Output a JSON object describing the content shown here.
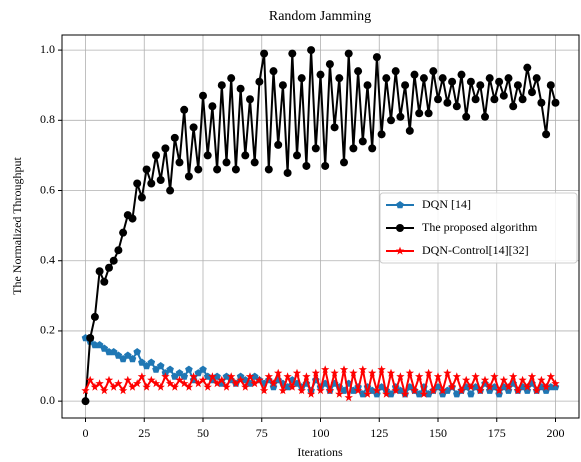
{
  "chart_data": {
    "type": "line",
    "title": "Random Jamming",
    "x_label": "Iterations",
    "y_label": "The Normalized Throughput",
    "x": [
      0,
      2,
      4,
      6,
      8,
      10,
      12,
      14,
      16,
      18,
      20,
      22,
      24,
      26,
      28,
      30,
      32,
      34,
      36,
      38,
      40,
      42,
      44,
      46,
      48,
      50,
      52,
      54,
      56,
      58,
      60,
      62,
      64,
      66,
      68,
      70,
      72,
      74,
      76,
      78,
      80,
      82,
      84,
      86,
      88,
      90,
      92,
      94,
      96,
      98,
      100,
      102,
      104,
      106,
      108,
      110,
      112,
      114,
      116,
      118,
      120,
      122,
      124,
      126,
      128,
      130,
      132,
      134,
      136,
      138,
      140,
      142,
      144,
      146,
      148,
      150,
      152,
      154,
      156,
      158,
      160,
      162,
      164,
      166,
      168,
      170,
      172,
      174,
      176,
      178,
      180,
      182,
      184,
      186,
      188,
      190,
      192,
      194,
      196,
      198,
      200
    ],
    "series": [
      {
        "name": "DQN [14]",
        "color": "#1f77b4",
        "marker": "pentagon",
        "values": [
          0.18,
          0.17,
          0.16,
          0.16,
          0.15,
          0.14,
          0.14,
          0.13,
          0.12,
          0.13,
          0.12,
          0.14,
          0.11,
          0.1,
          0.11,
          0.09,
          0.1,
          0.08,
          0.09,
          0.07,
          0.08,
          0.07,
          0.09,
          0.06,
          0.08,
          0.09,
          0.07,
          0.06,
          0.07,
          0.05,
          0.07,
          0.06,
          0.05,
          0.07,
          0.06,
          0.05,
          0.07,
          0.06,
          0.05,
          0.06,
          0.04,
          0.06,
          0.05,
          0.04,
          0.06,
          0.05,
          0.04,
          0.05,
          0.03,
          0.06,
          0.04,
          0.05,
          0.03,
          0.05,
          0.04,
          0.03,
          0.05,
          0.03,
          0.04,
          0.02,
          0.04,
          0.03,
          0.02,
          0.04,
          0.03,
          0.02,
          0.04,
          0.03,
          0.02,
          0.04,
          0.03,
          0.02,
          0.04,
          0.02,
          0.03,
          0.04,
          0.02,
          0.03,
          0.04,
          0.02,
          0.03,
          0.04,
          0.02,
          0.04,
          0.03,
          0.05,
          0.03,
          0.04,
          0.02,
          0.04,
          0.03,
          0.05,
          0.03,
          0.04,
          0.03,
          0.05,
          0.03,
          0.04,
          0.03,
          0.04,
          0.04
        ]
      },
      {
        "name": "The proposed algorithm",
        "color": "#000000",
        "marker": "circle",
        "values": [
          0.0,
          0.18,
          0.24,
          0.37,
          0.34,
          0.38,
          0.4,
          0.43,
          0.48,
          0.53,
          0.52,
          0.62,
          0.58,
          0.66,
          0.62,
          0.7,
          0.63,
          0.72,
          0.6,
          0.75,
          0.68,
          0.83,
          0.64,
          0.78,
          0.66,
          0.87,
          0.7,
          0.84,
          0.66,
          0.9,
          0.68,
          0.92,
          0.66,
          0.89,
          0.7,
          0.86,
          0.68,
          0.91,
          0.99,
          0.66,
          0.94,
          0.73,
          0.9,
          0.65,
          0.99,
          0.7,
          0.92,
          0.67,
          1.0,
          0.72,
          0.93,
          0.67,
          0.96,
          0.78,
          0.92,
          0.68,
          0.99,
          0.72,
          0.94,
          0.74,
          0.9,
          0.72,
          0.98,
          0.76,
          0.92,
          0.8,
          0.94,
          0.81,
          0.9,
          0.77,
          0.93,
          0.82,
          0.92,
          0.82,
          0.94,
          0.86,
          0.92,
          0.85,
          0.91,
          0.84,
          0.93,
          0.81,
          0.91,
          0.86,
          0.9,
          0.81,
          0.92,
          0.86,
          0.91,
          0.87,
          0.92,
          0.84,
          0.9,
          0.86,
          0.95,
          0.88,
          0.92,
          0.85,
          0.76,
          0.9,
          0.85
        ]
      },
      {
        "name": "DQN-Control[14][32]",
        "color": "#ff0000",
        "marker": "star",
        "values": [
          0.03,
          0.06,
          0.04,
          0.05,
          0.03,
          0.06,
          0.04,
          0.05,
          0.03,
          0.06,
          0.04,
          0.05,
          0.07,
          0.04,
          0.06,
          0.05,
          0.04,
          0.07,
          0.05,
          0.04,
          0.06,
          0.05,
          0.04,
          0.07,
          0.05,
          0.06,
          0.04,
          0.07,
          0.05,
          0.06,
          0.04,
          0.07,
          0.05,
          0.06,
          0.04,
          0.07,
          0.05,
          0.06,
          0.03,
          0.07,
          0.05,
          0.08,
          0.03,
          0.07,
          0.04,
          0.08,
          0.03,
          0.07,
          0.02,
          0.08,
          0.03,
          0.09,
          0.03,
          0.08,
          0.02,
          0.09,
          0.01,
          0.08,
          0.03,
          0.09,
          0.02,
          0.08,
          0.03,
          0.09,
          0.02,
          0.08,
          0.03,
          0.07,
          0.02,
          0.08,
          0.03,
          0.07,
          0.02,
          0.08,
          0.03,
          0.07,
          0.03,
          0.08,
          0.04,
          0.07,
          0.03,
          0.06,
          0.04,
          0.07,
          0.03,
          0.06,
          0.04,
          0.07,
          0.03,
          0.06,
          0.04,
          0.07,
          0.03,
          0.06,
          0.04,
          0.07,
          0.03,
          0.06,
          0.04,
          0.07,
          0.05
        ]
      }
    ],
    "xlim": [
      -10,
      210
    ],
    "ylim": [
      -0.048,
      1.043
    ],
    "xticks": [
      0,
      25,
      50,
      75,
      100,
      125,
      150,
      175,
      200
    ],
    "yticks": [
      {
        "value": 0,
        "label": "0.0"
      },
      0.2,
      0.4,
      0.6,
      0.8,
      {
        "value": 1,
        "label": "1.0"
      }
    ],
    "grid": true,
    "legend": "right"
  }
}
